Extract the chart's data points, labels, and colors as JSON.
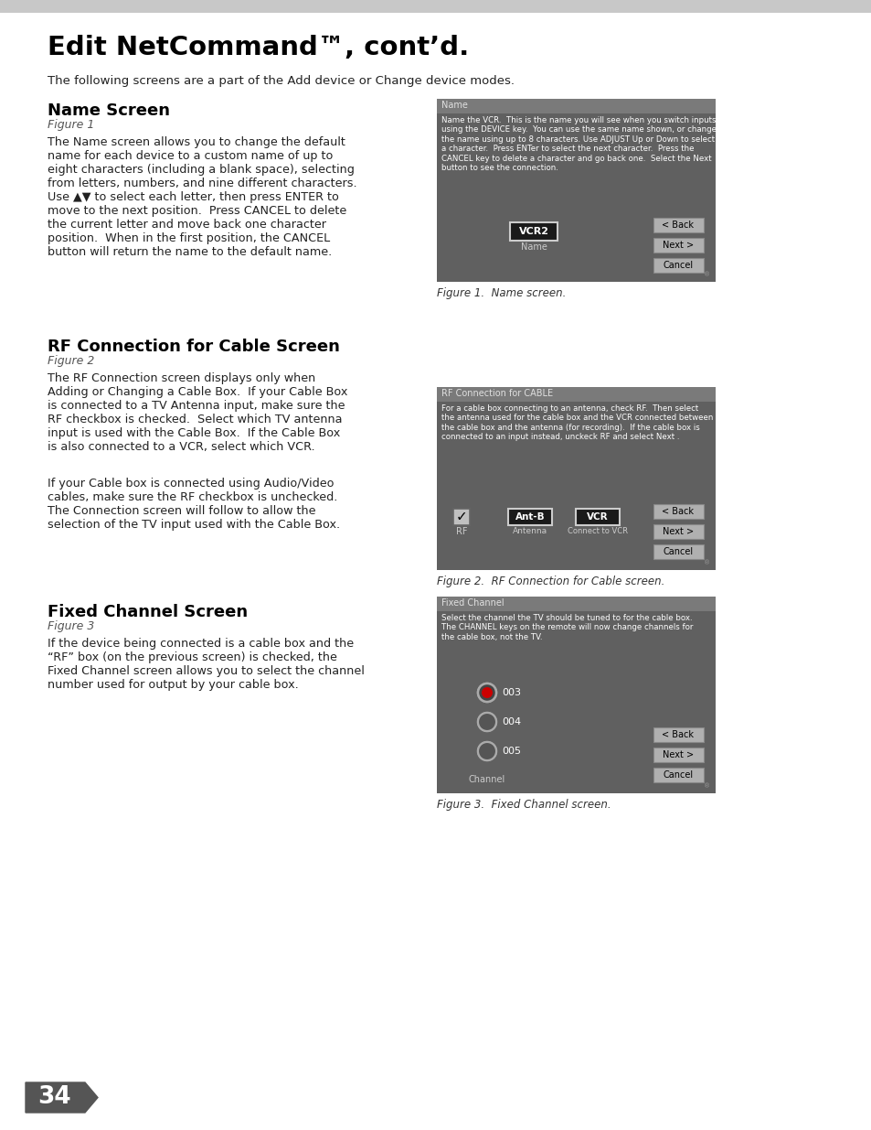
{
  "page_bg": "#ffffff",
  "top_bar_color": "#d0d0d0",
  "page_number": "34",
  "title": "Edit NetCommand™, cont’d.",
  "subtitle": "The following screens are a part of the Add device or Change device modes.",
  "section1_heading": "Name Screen",
  "section1_fig": "Figure 1",
  "section1_body": "The Name screen allows you to change the default\nname for each device to a custom name of up to\neight characters (including a blank space), selecting\nfrom letters, numbers, and nine different characters.\nUse ▲▼ to select each letter, then press ENTER to\nmove to the next position.  Press CANCEL to delete\nthe current letter and move back one character\nposition.  When in the first position, the CANCEL\nbutton will return the name to the default name.",
  "section2_heading": "RF Connection for Cable Screen",
  "section2_fig": "Figure 2",
  "section2_body1": "The RF Connection screen displays only when\nAdding or Changing a Cable Box.  If your Cable Box\nis connected to a TV Antenna input, make sure the\nRF checkbox is checked.  Select which TV antenna\ninput is used with the Cable Box.  If the Cable Box\nis also connected to a VCR, select which VCR.",
  "section2_body2": "If your Cable box is connected using Audio/Video\ncables, make sure the RF checkbox is unchecked.\nThe Connection screen will follow to allow the\nselection of the TV input used with the Cable Box.",
  "section3_heading": "Fixed Channel Screen",
  "section3_fig": "Figure 3",
  "section3_body": "If the device being connected is a cable box and the\n“RF” box (on the previous screen) is checked, the\nFixed Channel screen allows you to select the channel\nnumber used for output by your cable box.",
  "fig1_caption": "Figure 1.  Name screen.",
  "fig2_caption": "Figure 2.  RF Connection for Cable screen.",
  "fig3_caption": "Figure 3.  Fixed Channel screen.",
  "fig1_titlebar_text": "Name",
  "fig1_body": "Name the VCR.  This is the name you will see when you switch inputs\nusing the DEVICE key.  You can use the same name shown, or change\nthe name using up to 8 characters. Use ADJUST Up or Down to select\na character.  Press ENTer to select the next character.  Press the\nCANCEL key to delete a character and go back one.  Select the Next\nbutton to see the connection.",
  "fig2_titlebar_text": "RF Connection for CABLE",
  "fig2_body": "For a cable box connecting to an antenna, check RF.  Then select\nthe antenna used for the cable box and the VCR connected between\nthe cable box and the antenna (for recording).  If the cable box is\nconnected to an input instead, unckeck RF and select Next .",
  "fig3_titlebar_text": "Fixed Channel",
  "fig3_body": "Select the channel the TV should be tuned to for the cable box.\nThe CHANNEL keys on the remote will now change channels for\nthe cable box, not the TV.",
  "buttons": [
    "< Back",
    "Next >",
    "Cancel"
  ],
  "fig1_vcr_label": "VCR2",
  "fig1_name_label": "Name",
  "fig2_rf_label": "RF",
  "fig2_antenna_label": "Ant-B",
  "fig2_antenna_sub": "Antenna",
  "fig2_vcr_label": "VCR",
  "fig2_vcr_sub": "Connect to VCR",
  "fig3_channels": [
    "003",
    "004",
    "005"
  ],
  "fig3_channel_label": "Channel",
  "screen_outer": "#555555",
  "screen_titlebar_bg": "#7a7a7a",
  "screen_body_bg": "#606060",
  "screen_title_text": "#e0e0e0",
  "screen_body_text": "#ffffff",
  "screen_widget_bg": "#222222",
  "screen_widget_text": "#ffffff",
  "button_bg": "#b0b0b0",
  "button_text": "#000000",
  "checkbox_bg": "#c0c0c0",
  "radio_outer": "#777777",
  "radio_border": "#aaaaaa",
  "radio_selected_fill": "#cc0000",
  "bottom_icon_color": "#999999"
}
